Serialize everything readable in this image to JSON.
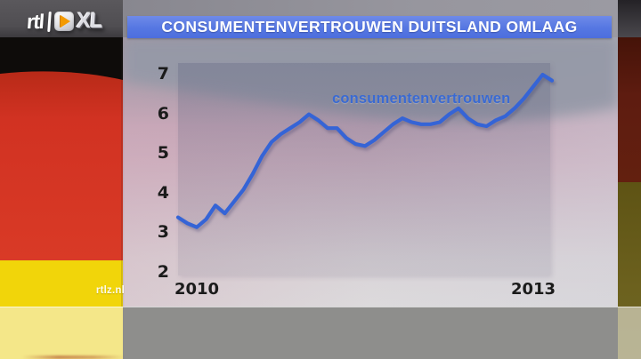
{
  "header": {
    "logo": {
      "rtl": "rtl",
      "xl": "XL",
      "play_icon": "orange-play-triangle"
    },
    "title": "CONSUMENTENVERTROUWEN DUITSLAND OMLAAG",
    "banner_color": "#5577e2"
  },
  "watermark": {
    "text": "rtlz.nl"
  },
  "chart_data": {
    "type": "line",
    "title": "",
    "series": [
      {
        "name": "consumentenvertrouwen",
        "values": [
          3.4,
          3.25,
          3.15,
          3.35,
          3.7,
          3.5,
          3.8,
          4.1,
          4.5,
          4.95,
          5.3,
          5.5,
          5.65,
          5.8,
          6.0,
          5.85,
          5.65,
          5.65,
          5.4,
          5.25,
          5.2,
          5.35,
          5.55,
          5.75,
          5.9,
          5.8,
          5.75,
          5.75,
          5.8,
          6.0,
          6.15,
          5.9,
          5.75,
          5.7,
          5.85,
          5.95,
          6.15,
          6.4,
          6.7,
          7.0,
          6.85
        ]
      }
    ],
    "x_start": "2009-11",
    "x_frequency": "monthly",
    "x_tick_labels": [
      {
        "label": "2010",
        "month_index": 2
      },
      {
        "label": "2013",
        "month_index": 38
      }
    ],
    "y_ticks": [
      7,
      6,
      5,
      4,
      3,
      2
    ],
    "ylim": [
      2,
      7.3
    ],
    "grid": false,
    "legend": "inline-label",
    "line_color": "#3564d6",
    "label_color": "#3a6ad2",
    "axis_text_color": "#1b1b1b"
  },
  "background": {
    "flag_colors": {
      "black": "#0e0c0a",
      "red": "#d13222",
      "yellow": "#f1d50a"
    },
    "right_strip_colors": {
      "dark_gray": "#4a484d",
      "maroon": "#5e1c10",
      "olive": "#6c611e"
    }
  }
}
